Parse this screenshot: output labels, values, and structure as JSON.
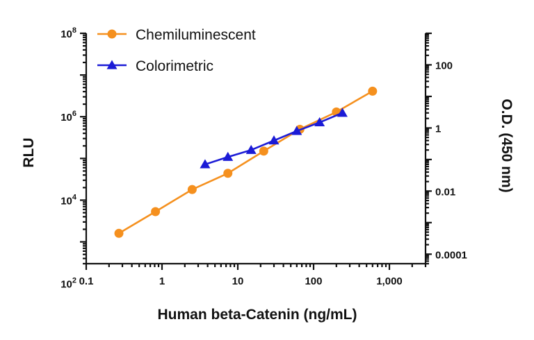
{
  "chart_data": {
    "type": "line",
    "xlabel": "Human beta-Catenin (ng/mL)",
    "ylabel": "RLU",
    "y2label": "O.D. (450 nm)",
    "x_scale": "log",
    "y_scale": "log",
    "y2_scale": "log",
    "xlim": [
      0.1,
      3000
    ],
    "ylim": [
      300,
      100000000
    ],
    "y2lim": [
      5e-05,
      1000
    ],
    "xticks": [
      0.1,
      1,
      10,
      100,
      1000
    ],
    "xtick_labels": [
      "0.1",
      "1",
      "10",
      "100",
      "1,000"
    ],
    "yticks": [
      100,
      10000,
      1000000,
      100000000
    ],
    "ytick_labels": [
      {
        "base": "10",
        "exp": "2"
      },
      {
        "base": "10",
        "exp": "4"
      },
      {
        "base": "10",
        "exp": "6"
      },
      {
        "base": "10",
        "exp": "8"
      }
    ],
    "y2ticks": [
      0.0001,
      0.01,
      1,
      100
    ],
    "y2tick_labels": [
      "0.0001",
      "0.01",
      "1",
      "100"
    ],
    "legend_position": "top-left",
    "series": [
      {
        "name": "Chemiluminescent",
        "axis": "left",
        "color": "#f5901e",
        "marker": "circle",
        "x": [
          0.27,
          0.82,
          2.5,
          7.4,
          22,
          66,
          200,
          600
        ],
        "y": [
          1600,
          5300,
          18000,
          44000,
          150000,
          500000,
          1300000,
          4100000
        ]
      },
      {
        "name": "Colorimetric",
        "axis": "right",
        "color": "#1b1bd6",
        "marker": "triangle",
        "x": [
          3.7,
          7.4,
          15,
          30,
          60,
          120,
          240
        ],
        "y": [
          0.07,
          0.12,
          0.2,
          0.4,
          0.8,
          1.5,
          3
        ]
      }
    ]
  }
}
